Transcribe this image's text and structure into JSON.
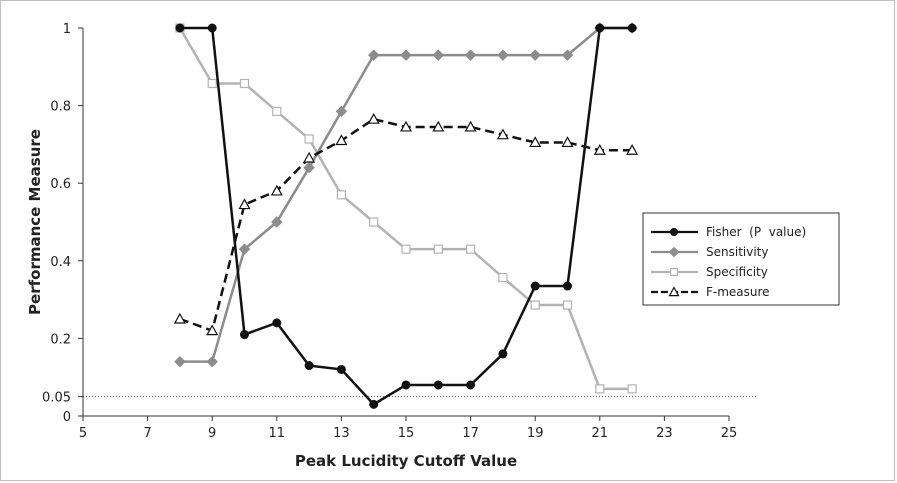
{
  "chart_data": {
    "type": "line",
    "xlabel": "Peak Lucidity Cutoff Value",
    "ylabel": "Performance Measure",
    "xlim": [
      5,
      25
    ],
    "ylim": [
      0,
      1
    ],
    "x_ticks": [
      "5",
      "7",
      "9",
      "11",
      "13",
      "15",
      "17",
      "19",
      "21",
      "23",
      "25"
    ],
    "y_ticks": [
      {
        "value": 0,
        "label": "0"
      },
      {
        "value": 0.05,
        "label": "0.05"
      },
      {
        "value": 0.2,
        "label": "0.2"
      },
      {
        "value": 0.4,
        "label": "0.4"
      },
      {
        "value": 0.6,
        "label": "0.6"
      },
      {
        "value": 0.8,
        "label": "0.8"
      },
      {
        "value": 1,
        "label": "1"
      }
    ],
    "reference_line": {
      "y": 0.05,
      "style": "dotted"
    },
    "grid": false,
    "legend_position": "right",
    "x": [
      8,
      9,
      10,
      11,
      12,
      13,
      14,
      15,
      16,
      17,
      18,
      19,
      20,
      21,
      22
    ],
    "series": [
      {
        "name": "Fisher  (P  value)",
        "color": "#111111",
        "marker": "circle",
        "dash": "solid",
        "values": [
          1,
          1,
          0.21,
          0.24,
          0.13,
          0.12,
          0.03,
          0.08,
          0.08,
          0.08,
          0.16,
          0.335,
          0.335,
          1,
          1
        ]
      },
      {
        "name": "Sensitivity",
        "color": "#8c8c8c",
        "marker": "diamond",
        "dash": "solid",
        "values": [
          0.14,
          0.14,
          0.43,
          0.5,
          0.64,
          0.785,
          0.93,
          0.93,
          0.93,
          0.93,
          0.93,
          0.93,
          0.93,
          1,
          1
        ]
      },
      {
        "name": "Specificity",
        "color": "#b3b3b3",
        "marker": "square",
        "dash": "solid",
        "values": [
          1,
          0.857,
          0.857,
          0.785,
          0.714,
          0.57,
          0.5,
          0.43,
          0.43,
          0.43,
          0.357,
          0.286,
          0.286,
          0.07,
          0.07
        ]
      },
      {
        "name": "F-measure",
        "color": "#111111",
        "marker": "triangle",
        "dash": "dashed",
        "values": [
          0.25,
          0.22,
          0.545,
          0.58,
          0.665,
          0.71,
          0.765,
          0.745,
          0.745,
          0.745,
          0.725,
          0.705,
          0.705,
          0.685,
          0.685
        ]
      }
    ]
  }
}
